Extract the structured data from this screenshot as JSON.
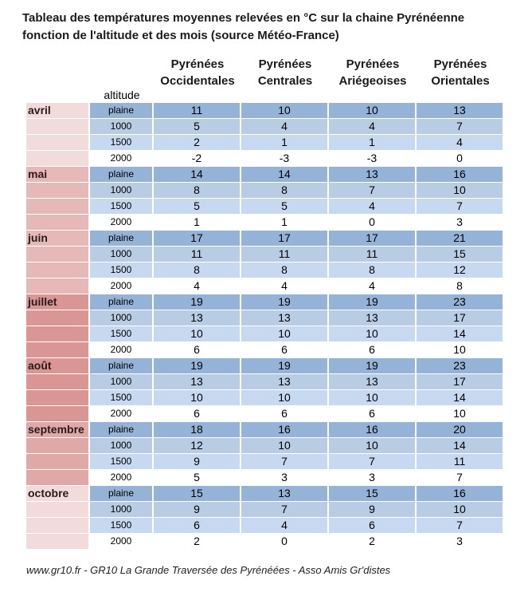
{
  "title_line1": "Tableau des températures moyennes relevées en °C sur la chaine Pyrénéenne",
  "title_line2": "fonction de l'altitude et des mois (source Météo-France)",
  "columns": [
    [
      "Pyrénées",
      "Occidentales"
    ],
    [
      "Pyrénées",
      "Centrales"
    ],
    [
      "Pyrénées",
      "Ariégeoises"
    ],
    [
      "Pyrénées",
      "Orientales"
    ]
  ],
  "altitude_label": "altitude",
  "altitudes": [
    "plaine",
    "1000",
    "1500",
    "2000"
  ],
  "months": [
    {
      "name": "avril",
      "color": "#f2dcdb",
      "values": [
        [
          11,
          10,
          10,
          13
        ],
        [
          5,
          4,
          4,
          7
        ],
        [
          2,
          1,
          1,
          4
        ],
        [
          -2,
          -3,
          -3,
          0
        ]
      ]
    },
    {
      "name": "mai",
      "color": "#e6b9b8",
      "values": [
        [
          14,
          14,
          13,
          16
        ],
        [
          8,
          8,
          7,
          10
        ],
        [
          5,
          5,
          4,
          7
        ],
        [
          1,
          1,
          0,
          3
        ]
      ]
    },
    {
      "name": "juin",
      "color": "#e6b9b8",
      "values": [
        [
          17,
          17,
          17,
          21
        ],
        [
          11,
          11,
          11,
          15
        ],
        [
          8,
          8,
          8,
          12
        ],
        [
          4,
          4,
          4,
          8
        ]
      ]
    },
    {
      "name": "juillet",
      "color": "#d99694",
      "values": [
        [
          19,
          19,
          19,
          23
        ],
        [
          13,
          13,
          13,
          17
        ],
        [
          10,
          10,
          10,
          14
        ],
        [
          6,
          6,
          6,
          10
        ]
      ]
    },
    {
      "name": "août",
      "color": "#d99694",
      "values": [
        [
          19,
          19,
          19,
          23
        ],
        [
          13,
          13,
          13,
          17
        ],
        [
          10,
          10,
          10,
          14
        ],
        [
          6,
          6,
          6,
          10
        ]
      ]
    },
    {
      "name": "septembre",
      "color": "#e0a9a8",
      "values": [
        [
          18,
          16,
          16,
          20
        ],
        [
          12,
          10,
          10,
          14
        ],
        [
          9,
          7,
          7,
          11
        ],
        [
          5,
          3,
          3,
          7
        ]
      ]
    },
    {
      "name": "octobre",
      "color": "#f2dcdb",
      "values": [
        [
          15,
          13,
          15,
          16
        ],
        [
          9,
          7,
          9,
          10
        ],
        [
          6,
          4,
          6,
          7
        ],
        [
          2,
          0,
          2,
          3
        ]
      ]
    }
  ],
  "footer": "www.gr10.fr  - GR10 La Grande Traversée des Pyrénéées - Asso Amis Gr'distes"
}
